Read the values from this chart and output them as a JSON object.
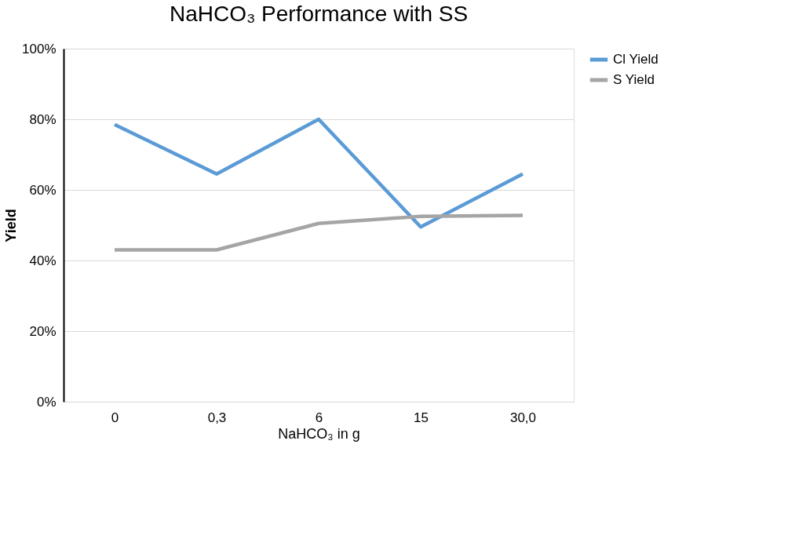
{
  "chart_data": {
    "type": "line",
    "title": "NaHCO₃ Performance with SS",
    "xlabel": "NaHCO₃ in g",
    "ylabel": "Yield",
    "categories": [
      "0",
      "0,3",
      "6",
      "15",
      "30,0"
    ],
    "series": [
      {
        "name": "Cl Yield",
        "color": "#5b9bd5",
        "values": [
          78.5,
          64.5,
          80,
          49.5,
          64.5
        ]
      },
      {
        "name": "S Yield",
        "color": "#a5a5a5",
        "values": [
          43,
          43,
          50.5,
          52.5,
          52.8
        ]
      }
    ],
    "ylim": [
      0,
      100
    ],
    "yticks": [
      {
        "value": 0,
        "label": "0%"
      },
      {
        "value": 20,
        "label": "20%"
      },
      {
        "value": 40,
        "label": "40%"
      },
      {
        "value": 60,
        "label": "60%"
      },
      {
        "value": 80,
        "label": "80%"
      },
      {
        "value": 100,
        "label": "100%"
      }
    ],
    "grid": "y",
    "legend": "right",
    "marker": "none",
    "line_style": "solid"
  }
}
